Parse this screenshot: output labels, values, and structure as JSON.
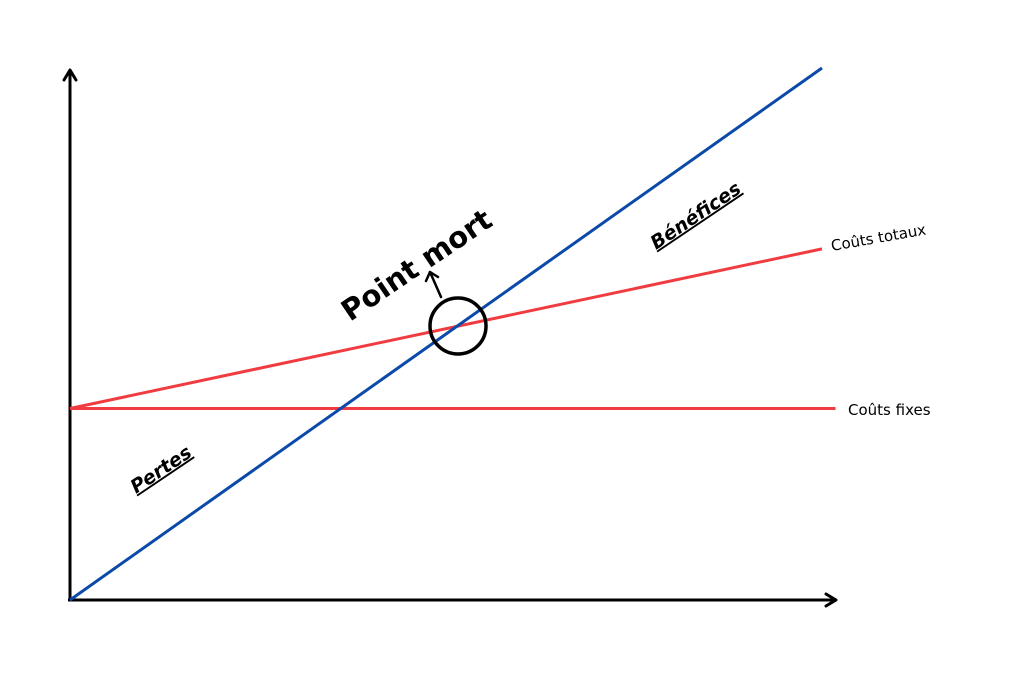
{
  "chart_data": {
    "type": "line",
    "title": "",
    "xlabel": "",
    "ylabel": "",
    "xlim": [
      0,
      100
    ],
    "ylim": [
      0,
      100
    ],
    "grid": false,
    "series": [
      {
        "name": "Coûts fixes",
        "color": "#f03c41",
        "points": [
          [
            0,
            36
          ],
          [
            100,
            36
          ]
        ]
      },
      {
        "name": "Coûts totaux",
        "color": "#f03c41",
        "points": [
          [
            0,
            36
          ],
          [
            100,
            66
          ]
        ]
      },
      {
        "color": "#0b4aa8",
        "points": [
          [
            0,
            0
          ],
          [
            100,
            100
          ]
        ]
      }
    ],
    "annotations": [
      {
        "id": "point-mort",
        "text": "Point mort",
        "at": [
          51.5,
          51.5
        ]
      },
      {
        "id": "benefices",
        "text": "Bénéfices",
        "at": [
          80,
          72
        ]
      },
      {
        "id": "pertes",
        "text": "Pertes",
        "at": [
          10,
          24
        ]
      }
    ]
  }
}
